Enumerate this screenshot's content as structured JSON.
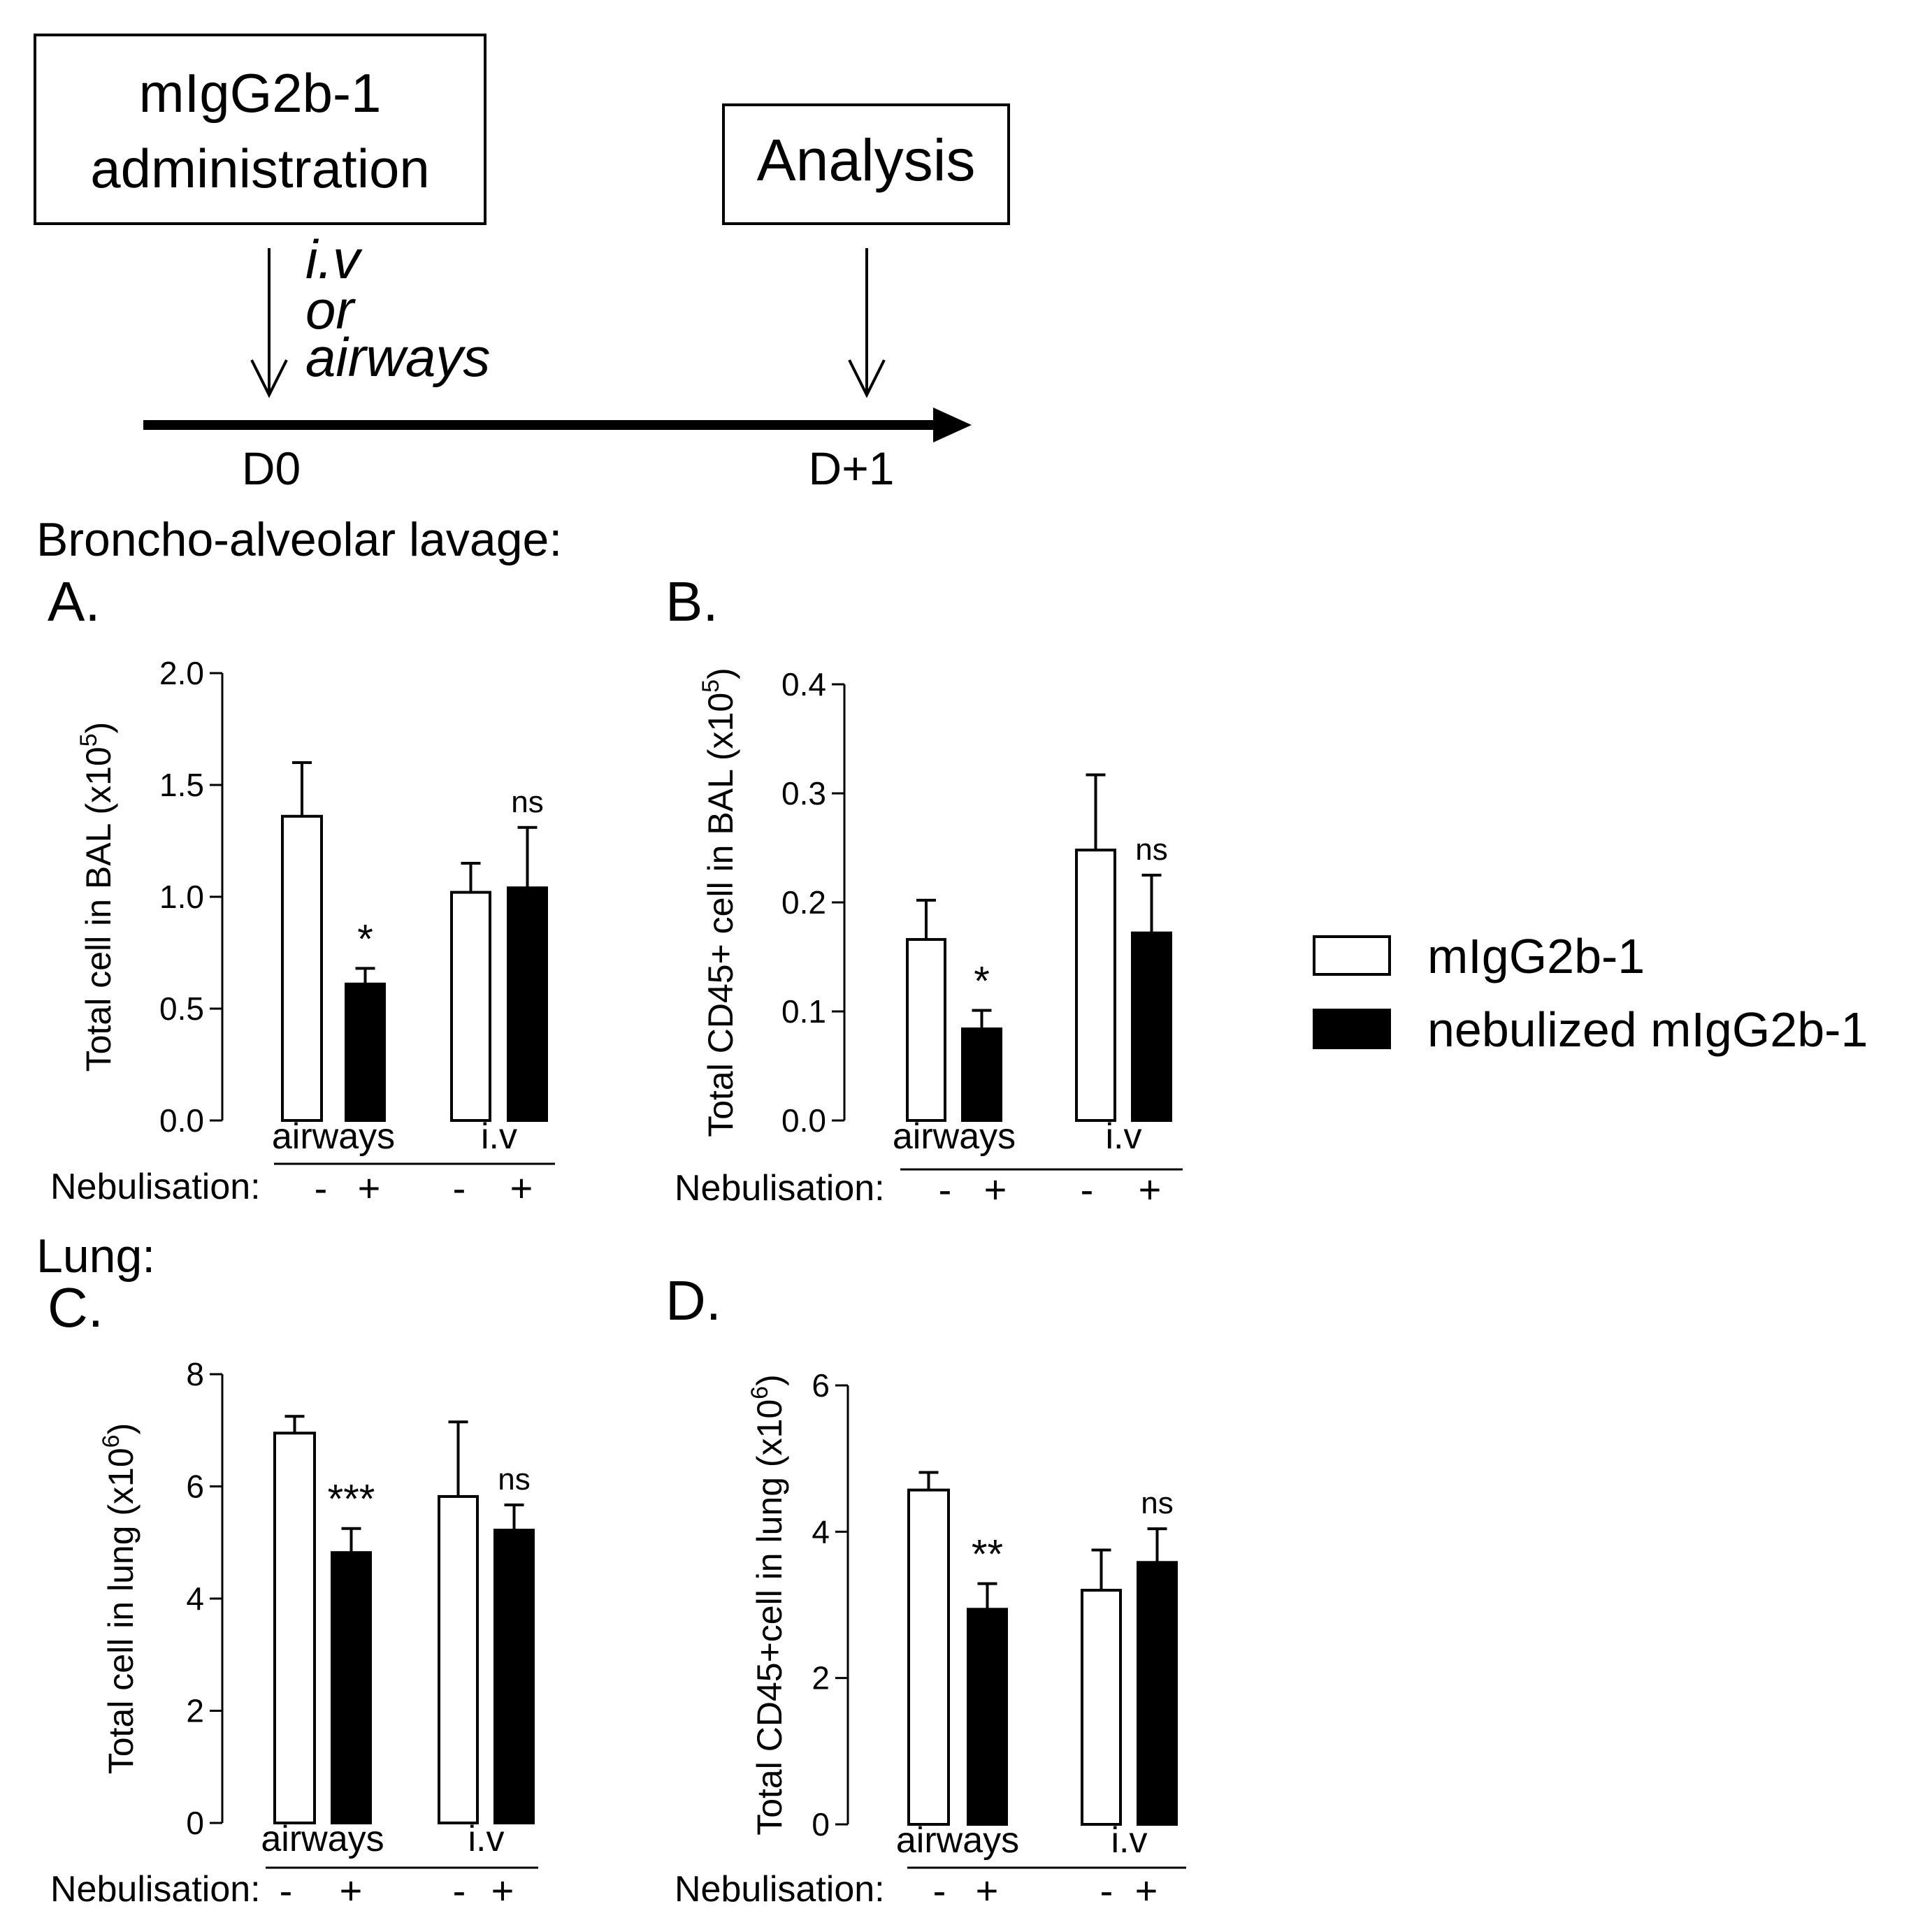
{
  "timeline": {
    "administration_box": [
      "mIgG2b-1",
      "administration"
    ],
    "route_label": [
      "i.v",
      "or",
      "airways"
    ],
    "analysis_box": "Analysis",
    "day_start": "D0",
    "day_end": "D+1"
  },
  "sections": {
    "bal": "Broncho-alveolar lavage:",
    "lung": "Lung:"
  },
  "legend": {
    "items": [
      {
        "label": "mIgG2b-1",
        "fill": "#ffffff"
      },
      {
        "label": "nebulized mIgG2b-1",
        "fill": "#000000"
      }
    ]
  },
  "chart_data": [
    {
      "type": "bar",
      "panel_label": "A.",
      "ylabel_main": "Total cell in BAL (x10",
      "ylabel_exp": "5",
      "ylabel_close": ")",
      "ylim": [
        0,
        2.0
      ],
      "yticks": [
        "0.0",
        "0.5",
        "1.0",
        "1.5",
        "2.0"
      ],
      "groups": [
        "airways",
        "i.v"
      ],
      "nebulisation_label": "Nebulisation:",
      "nebulisation_signs": [
        "-",
        "+",
        "-",
        "+"
      ],
      "series": [
        {
          "name": "mIgG2b-1",
          "values": [
            1.36,
            1.02
          ],
          "errors": [
            0.24,
            0.13
          ]
        },
        {
          "name": "nebulized mIgG2b-1",
          "values": [
            0.61,
            1.04
          ],
          "errors": [
            0.07,
            0.27
          ]
        }
      ],
      "annotations": [
        "*",
        "ns"
      ]
    },
    {
      "type": "bar",
      "panel_label": "B.",
      "ylabel_main": "Total CD45+ cell in BAL (x10",
      "ylabel_exp": "5",
      "ylabel_close": ")",
      "ylim": [
        0,
        0.4
      ],
      "yticks": [
        "0.0",
        "0.1",
        "0.2",
        "0.3",
        "0.4"
      ],
      "groups": [
        "airways",
        "i.v"
      ],
      "nebulisation_label": "Nebulisation:",
      "nebulisation_signs": [
        "-",
        "+",
        "-",
        "+"
      ],
      "series": [
        {
          "name": "mIgG2b-1",
          "values": [
            0.166,
            0.248
          ],
          "errors": [
            0.036,
            0.069
          ]
        },
        {
          "name": "nebulized mIgG2b-1",
          "values": [
            0.084,
            0.172
          ],
          "errors": [
            0.017,
            0.053
          ]
        }
      ],
      "annotations": [
        "*",
        "ns"
      ]
    },
    {
      "type": "bar",
      "panel_label": "C.",
      "ylabel_main": "Total cell in lung (x10",
      "ylabel_exp": "6",
      "ylabel_close": ")",
      "ylim": [
        0,
        8
      ],
      "yticks": [
        "0",
        "2",
        "4",
        "6",
        "8"
      ],
      "groups": [
        "airways",
        "i.v"
      ],
      "nebulisation_label": "Nebulisation:",
      "nebulisation_signs": [
        "-",
        "+",
        "-",
        "+"
      ],
      "series": [
        {
          "name": "mIgG2b-1",
          "values": [
            6.95,
            5.82
          ],
          "errors": [
            0.3,
            1.33
          ]
        },
        {
          "name": "nebulized mIgG2b-1",
          "values": [
            4.82,
            5.22
          ],
          "errors": [
            0.43,
            0.45
          ]
        }
      ],
      "annotations": [
        "***",
        "ns"
      ]
    },
    {
      "type": "bar",
      "panel_label": "D.",
      "ylabel_main": "Total CD45+cell in lung (x10",
      "ylabel_exp": "6",
      "ylabel_close": ")",
      "ylim": [
        0,
        6
      ],
      "yticks": [
        "0",
        "2",
        "4",
        "6"
      ],
      "groups": [
        "airways",
        "i.v"
      ],
      "nebulisation_label": "Nebulisation:",
      "nebulisation_signs": [
        "-",
        "+",
        "-",
        "+"
      ],
      "series": [
        {
          "name": "mIgG2b-1",
          "values": [
            4.57,
            3.2
          ],
          "errors": [
            0.24,
            0.55
          ]
        },
        {
          "name": "nebulized mIgG2b-1",
          "values": [
            2.94,
            3.58
          ],
          "errors": [
            0.35,
            0.46
          ]
        }
      ],
      "annotations": [
        "**",
        "ns"
      ]
    }
  ]
}
